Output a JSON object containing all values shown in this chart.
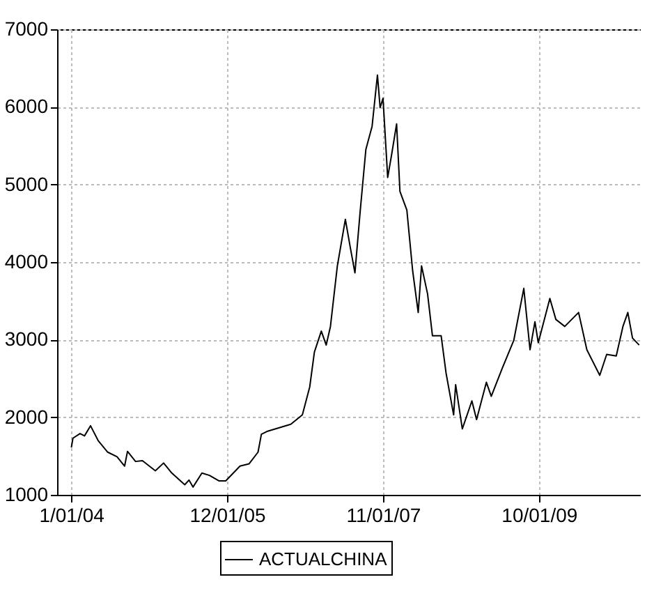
{
  "chart_data": {
    "type": "line",
    "x": [
      "2004-01-02",
      "2004-01-09",
      "2004-02-10",
      "2004-03-01",
      "2004-03-28",
      "2004-05-01",
      "2004-06-13",
      "2004-07-25",
      "2004-08-28",
      "2004-09-10",
      "2004-10-16",
      "2004-11-16",
      "2005-01-13",
      "2005-02-19",
      "2005-03-28",
      "2005-05-25",
      "2005-06-13",
      "2005-07-01",
      "2005-08-10",
      "2005-09-13",
      "2005-10-25",
      "2005-11-25",
      "2006-01-28",
      "2006-03-10",
      "2006-04-19",
      "2006-05-04",
      "2006-06-01",
      "2006-09-13",
      "2006-11-04",
      "2006-12-07",
      "2006-12-28",
      "2007-01-28",
      "2007-02-19",
      "2007-03-10",
      "2007-04-10",
      "2007-05-16",
      "2007-06-07",
      "2007-06-28",
      "2007-07-22",
      "2007-08-16",
      "2007-09-13",
      "2007-10-07",
      "2007-10-19",
      "2007-11-01",
      "2007-11-22",
      "2007-12-10",
      "2008-01-01",
      "2008-01-16",
      "2008-02-16",
      "2008-03-13",
      "2008-04-07",
      "2008-04-22",
      "2008-05-19",
      "2008-06-10",
      "2008-07-19",
      "2008-08-10",
      "2008-09-13",
      "2008-09-22",
      "2008-10-22",
      "2008-12-04",
      "2008-12-25",
      "2009-02-07",
      "2009-03-01",
      "2009-04-19",
      "2009-06-10",
      "2009-07-25",
      "2009-08-22",
      "2009-09-13",
      "2009-09-28",
      "2009-11-19",
      "2009-12-16",
      "2010-01-25",
      "2010-03-28",
      "2010-05-04",
      "2010-07-01",
      "2010-08-01",
      "2010-09-13",
      "2010-10-13",
      "2010-11-04",
      "2010-11-25",
      "2010-12-25"
    ],
    "series": [
      {
        "name": "ACTUALCHINA",
        "color": "#000000",
        "values": [
          1610,
          1730,
          1790,
          1760,
          1890,
          1700,
          1550,
          1490,
          1370,
          1560,
          1430,
          1440,
          1310,
          1410,
          1280,
          1130,
          1190,
          1100,
          1280,
          1250,
          1180,
          1180,
          1370,
          1400,
          1550,
          1780,
          1820,
          1910,
          2030,
          2390,
          2840,
          3110,
          2930,
          3170,
          3950,
          4550,
          4190,
          3860,
          4670,
          5450,
          5750,
          6410,
          5990,
          6110,
          5090,
          5390,
          5780,
          4910,
          4670,
          3890,
          3350,
          3950,
          3590,
          3050,
          3050,
          2570,
          2030,
          2420,
          1850,
          2210,
          1970,
          2450,
          2270,
          2630,
          2990,
          3660,
          2870,
          3230,
          2960,
          3530,
          3260,
          3170,
          3350,
          2870,
          2540,
          2810,
          2790,
          3170,
          3350,
          3020,
          2930
        ]
      }
    ],
    "xlim": [
      "2003-10-30",
      "2011-01-01"
    ],
    "xticks": [
      {
        "value": "2004-01-01",
        "label": "1/01/04"
      },
      {
        "value": "2005-12-01",
        "label": "12/01/05"
      },
      {
        "value": "2007-11-01",
        "label": "11/01/07"
      },
      {
        "value": "2009-10-01",
        "label": "10/01/09"
      }
    ],
    "ylim": [
      1000,
      7000
    ],
    "yticks": [
      1000,
      2000,
      3000,
      4000,
      5000,
      6000,
      7000
    ],
    "grid": true,
    "legend": "bottom"
  }
}
